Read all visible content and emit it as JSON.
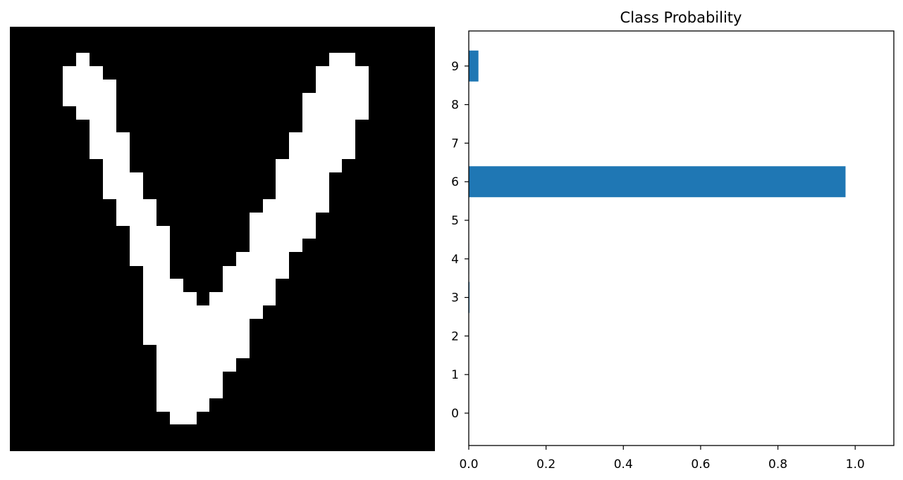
{
  "digit_image": {
    "pixels": [
      "0000000000000000000000000000000000000000000000000000000000000000000000000",
      "0000000000000000000000000000000000000000000000000000000000000000000000000"
    ],
    "foreground": "#ffffff",
    "background": "#000000"
  },
  "chart_data": {
    "type": "bar",
    "orientation": "horizontal",
    "title": "Class Probability",
    "categories": [
      "0",
      "1",
      "2",
      "3",
      "4",
      "5",
      "6",
      "7",
      "8",
      "9"
    ],
    "values": [
      0.0,
      0.0,
      0.0,
      0.002,
      0.001,
      0.0,
      0.975,
      0.0,
      0.0,
      0.025
    ],
    "xlim": [
      0.0,
      1.1
    ],
    "x_ticks": [
      "0.0",
      "0.2",
      "0.4",
      "0.6",
      "0.8",
      "1.0"
    ],
    "x_tick_values": [
      0.0,
      0.2,
      0.4,
      0.6,
      0.8,
      1.0
    ],
    "bar_color": "#1f77b4",
    "grid": false,
    "xlabel": "",
    "ylabel": ""
  }
}
